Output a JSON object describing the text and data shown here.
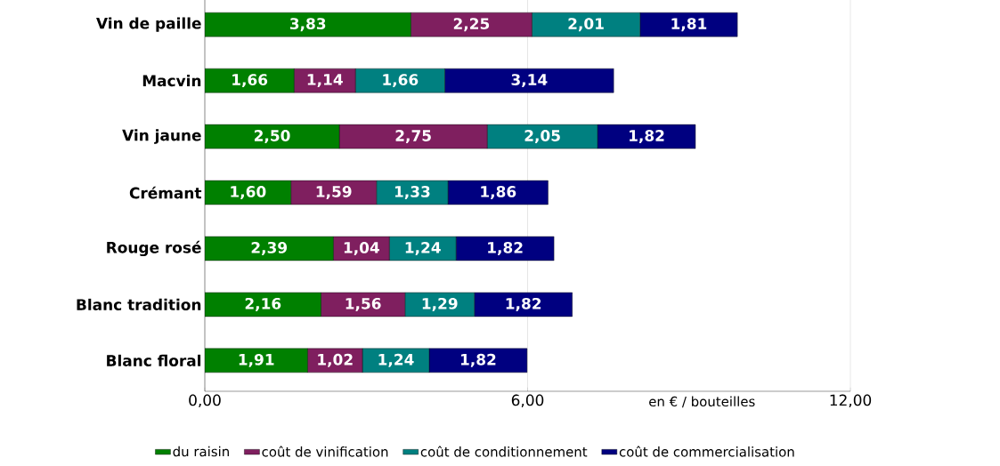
{
  "chart_data": {
    "type": "bar",
    "orientation": "horizontal",
    "stacked": true,
    "categories": [
      "Vin de paille",
      "Macvin",
      "Vin jaune",
      "Crémant",
      "Rouge rosé",
      "Blanc tradition",
      "Blanc floral"
    ],
    "series": [
      {
        "name": "du raisin",
        "color": "#008000",
        "values": [
          3.83,
          1.66,
          2.5,
          1.6,
          2.39,
          2.16,
          1.91
        ],
        "value_labels": [
          "3,83",
          "1,66",
          "2,50",
          "1,60",
          "2,39",
          "2,16",
          "1,91"
        ]
      },
      {
        "name": "coût de vinification",
        "color": "#7f1f5f",
        "values": [
          2.25,
          1.14,
          2.75,
          1.59,
          1.04,
          1.56,
          1.02
        ],
        "value_labels": [
          "2,25",
          "1,14",
          "2,75",
          "1,59",
          "1,04",
          "1,56",
          "1,02"
        ]
      },
      {
        "name": "coût de conditionnement",
        "color": "#008080",
        "values": [
          2.01,
          1.66,
          2.05,
          1.33,
          1.24,
          1.29,
          1.24
        ],
        "value_labels": [
          "2,01",
          "1,66",
          "2,05",
          "1,33",
          "1,24",
          "1,29",
          "1,24"
        ]
      },
      {
        "name": "coût de commercialisation",
        "color": "#000080",
        "values": [
          1.81,
          3.14,
          1.82,
          1.86,
          1.82,
          1.82,
          1.82
        ],
        "value_labels": [
          "1,81",
          "3,14",
          "1,82",
          "1,86",
          "1,82",
          "1,82",
          "1,82"
        ]
      }
    ],
    "xlim": [
      0,
      12
    ],
    "xticks": [
      {
        "value": 0,
        "label": "0,00"
      },
      {
        "value": 6,
        "label": "6,00"
      },
      {
        "value": 12,
        "label": "12,00"
      }
    ],
    "xlabel": "en € / bouteilles",
    "grid": "x",
    "legend": "bottom"
  }
}
